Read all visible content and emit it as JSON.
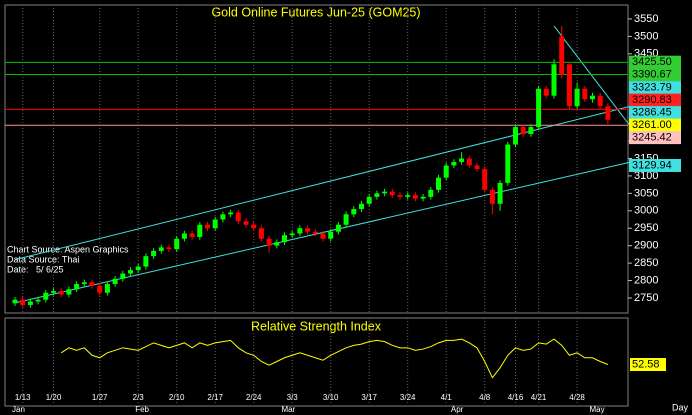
{
  "chart_data": [
    {
      "type": "candlestick",
      "title": "Gold Online Futures Jun-25 (GOM25)",
      "notes": [
        "Chart Source: Aspen Graphics",
        "Data Source: Thai",
        "Date:   5/ 6/25"
      ],
      "categories": [
        null,
        "1/13",
        null,
        null,
        null,
        "1/20",
        null,
        null,
        null,
        null,
        null,
        "1/27",
        null,
        null,
        null,
        null,
        "2/3",
        null,
        null,
        null,
        null,
        "2/10",
        null,
        null,
        null,
        null,
        "2/17",
        null,
        null,
        null,
        null,
        "2/24",
        null,
        null,
        null,
        null,
        "3/3",
        null,
        null,
        null,
        null,
        "3/10",
        null,
        null,
        null,
        null,
        "3/17",
        null,
        null,
        null,
        null,
        "3/24",
        null,
        null,
        null,
        null,
        "4/1",
        null,
        null,
        null,
        null,
        "4/8",
        null,
        null,
        null,
        "4/16",
        null,
        null,
        "4/21",
        null,
        null,
        null,
        null,
        "4/28",
        null,
        null,
        null,
        null
      ],
      "months": [
        "Jan",
        null,
        null,
        null,
        null,
        null,
        null,
        null,
        null,
        null,
        null,
        null,
        null,
        null,
        null,
        null,
        "Feb",
        null,
        null,
        null,
        null,
        null,
        null,
        null,
        null,
        null,
        null,
        null,
        null,
        null,
        null,
        null,
        null,
        null,
        null,
        "Mar",
        null,
        null,
        null,
        null,
        null,
        null,
        null,
        null,
        null,
        null,
        null,
        null,
        null,
        null,
        null,
        null,
        null,
        null,
        null,
        null,
        null,
        "Apr",
        null,
        null,
        null,
        null,
        null,
        null,
        null,
        null,
        null,
        null,
        null,
        null,
        null,
        null,
        null,
        null,
        null,
        "May",
        null
      ],
      "open": [
        2735,
        2745,
        2730,
        2740,
        2745,
        2765,
        2770,
        2760,
        2775,
        2790,
        2795,
        2785,
        2765,
        2790,
        2805,
        2820,
        2830,
        2840,
        2870,
        2885,
        2895,
        2890,
        2920,
        2935,
        2925,
        2960,
        2950,
        2975,
        2990,
        2995,
        2970,
        2960,
        2950,
        2920,
        2900,
        2910,
        2930,
        2935,
        2950,
        2940,
        2935,
        2920,
        2940,
        2960,
        2990,
        3005,
        3020,
        3040,
        3050,
        3055,
        3045,
        3040,
        3045,
        3035,
        3040,
        3060,
        3095,
        3130,
        3140,
        3150,
        3130,
        3120,
        3060,
        3020,
        3080,
        3190,
        3240,
        3220,
        3240,
        3350,
        3330,
        3500,
        3420,
        3300,
        3350,
        3320,
        3330,
        3300
      ],
      "high": [
        2753,
        2753,
        2748,
        2753,
        2773,
        2778,
        2778,
        2783,
        2798,
        2803,
        2803,
        2793,
        2798,
        2813,
        2828,
        2838,
        2848,
        2878,
        2893,
        2903,
        2903,
        2928,
        2943,
        2943,
        2968,
        2968,
        2983,
        2998,
        3003,
        3003,
        2978,
        2968,
        2958,
        2928,
        2918,
        2938,
        2943,
        2958,
        2958,
        2948,
        2943,
        2948,
        2968,
        2998,
        3013,
        3028,
        3048,
        3058,
        3063,
        3063,
        3053,
        3053,
        3053,
        3048,
        3068,
        3103,
        3138,
        3148,
        3168,
        3158,
        3138,
        3128,
        3068,
        3088,
        3198,
        3248,
        3248,
        3248,
        3358,
        3358,
        3435,
        3530,
        3428,
        3368,
        3358,
        3338,
        3338,
        3308
      ],
      "low": [
        2727,
        2722,
        2722,
        2732,
        2737,
        2757,
        2752,
        2752,
        2767,
        2782,
        2777,
        2757,
        2757,
        2782,
        2797,
        2812,
        2822,
        2832,
        2862,
        2877,
        2882,
        2882,
        2912,
        2917,
        2917,
        2942,
        2942,
        2967,
        2982,
        2962,
        2952,
        2942,
        2912,
        2880,
        2892,
        2902,
        2922,
        2927,
        2932,
        2927,
        2912,
        2912,
        2932,
        2952,
        2982,
        2997,
        3012,
        3032,
        3042,
        3037,
        3032,
        3032,
        3027,
        3027,
        3032,
        3052,
        3087,
        3122,
        3132,
        3122,
        3112,
        3052,
        2990,
        3000,
        3072,
        3182,
        3212,
        3212,
        3232,
        3322,
        3322,
        3380,
        3290,
        3292,
        3312,
        3310,
        3292,
        3245
      ],
      "close": [
        2745,
        2730,
        2740,
        2745,
        2765,
        2770,
        2760,
        2775,
        2790,
        2795,
        2785,
        2765,
        2790,
        2805,
        2820,
        2830,
        2840,
        2870,
        2885,
        2895,
        2890,
        2920,
        2935,
        2925,
        2960,
        2950,
        2975,
        2990,
        2995,
        2970,
        2960,
        2950,
        2920,
        2900,
        2910,
        2930,
        2935,
        2950,
        2940,
        2935,
        2920,
        2940,
        2960,
        2990,
        3005,
        3020,
        3040,
        3050,
        3055,
        3045,
        3040,
        3045,
        3035,
        3040,
        3060,
        3095,
        3130,
        3140,
        3150,
        3130,
        3120,
        3060,
        3020,
        3080,
        3190,
        3240,
        3220,
        3240,
        3350,
        3330,
        3420,
        3390,
        3300,
        3350,
        3320,
        3330,
        3300,
        3261
      ],
      "up_color": "#00ff00",
      "down_color": "#ff0000",
      "ylim": [
        2707,
        3590
      ],
      "yticks": [
        2750,
        2800,
        2850,
        2900,
        2950,
        3000,
        3050,
        3100,
        3150,
        3200,
        3450,
        3500,
        3550
      ],
      "levels": [
        {
          "value": 3425.5,
          "label": "3425.50",
          "color": "#33cc33",
          "line_color": "#00c000"
        },
        {
          "value": 3390.67,
          "label": "3390.67",
          "color": "#33cc33",
          "line_color": "#00c000"
        },
        {
          "value": 3323.79,
          "label": "3323.79",
          "color": "#40e0e0"
        },
        {
          "value": 3290.83,
          "label": "3290.83",
          "color": "#ff2020",
          "line_color": "#ff0000"
        },
        {
          "value": 3286.45,
          "label": "3286.45",
          "color": "#40e0e0"
        },
        {
          "value": 3261,
          "label": "3261.00",
          "color": "#ffff00"
        },
        {
          "value": 3245.42,
          "label": "3245.42",
          "color": "#ffc0c0",
          "line_color": "#ff9090"
        },
        {
          "value": 3129.94,
          "label": "3129.94",
          "color": "#40e0e0"
        }
      ],
      "trendlines": [
        {
          "start": [
            0,
            2860
          ],
          "end": [
            80,
            3300
          ],
          "color": "#40e0e0"
        },
        {
          "start": [
            0,
            2736
          ],
          "end": [
            80,
            3140
          ],
          "color": "#40e0e0"
        },
        {
          "start": [
            70,
            3530
          ],
          "end": [
            80,
            3240
          ],
          "color": "#40e0e0"
        }
      ]
    },
    {
      "type": "line",
      "title": "Relative Strength Index",
      "xlabel": "Day",
      "color": "#ffff00",
      "ylim": [
        20,
        90
      ],
      "values": [
        null,
        null,
        null,
        null,
        null,
        null,
        62,
        66,
        64,
        66,
        60,
        58,
        62,
        64,
        66,
        65,
        64,
        67,
        70,
        68,
        66,
        68,
        70,
        66,
        70,
        68,
        70,
        71,
        72,
        66,
        62,
        60,
        55,
        52,
        55,
        58,
        60,
        62,
        60,
        58,
        56,
        60,
        63,
        66,
        68,
        69,
        71,
        72,
        71,
        68,
        66,
        66,
        64,
        65,
        67,
        70,
        72,
        72,
        73,
        70,
        66,
        55,
        42,
        50,
        60,
        66,
        64,
        65,
        70,
        69,
        73,
        68,
        60,
        62,
        58,
        58,
        55,
        52.58
      ]
    }
  ]
}
